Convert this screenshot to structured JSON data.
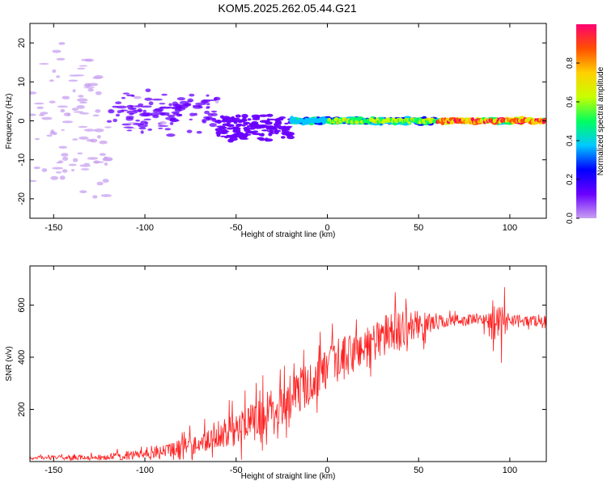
{
  "figure": {
    "title": "KOM5.2025.262.05.44.G21"
  },
  "chart_data": [
    {
      "type": "heatmap",
      "xlabel": "Height of straight line (km)",
      "ylabel": "Frequency (Hz)",
      "xlim": [
        -163,
        120
      ],
      "ylim": [
        -25,
        25
      ],
      "xticks": [
        -150,
        -100,
        -50,
        0,
        50,
        100
      ],
      "yticks": [
        -20,
        -10,
        0,
        10,
        20
      ],
      "colorbar": {
        "label": "Normalized spectral amplitude",
        "range": [
          0,
          1
        ],
        "ticks": [
          0.0,
          0.2,
          0.4,
          0.6,
          0.8
        ],
        "tick_labels": [
          "0.0",
          "0.2",
          "0.4",
          "0.6",
          "0.8"
        ],
        "colormap": [
          "#c8a0f0",
          "#6a00ff",
          "#0000ff",
          "#00c8ff",
          "#00ff60",
          "#c8ff00",
          "#ffd000",
          "#ff5000",
          "#ff0070"
        ]
      },
      "ridge": {
        "description_free_segments": [
          {
            "x0": -163,
            "x1": -120,
            "center_y": 0,
            "spread": 22,
            "amp": 0.05
          },
          {
            "x0": -120,
            "x1": -60,
            "center_y": 2,
            "spread": 6,
            "amp": 0.12
          },
          {
            "x0": -60,
            "x1": -20,
            "center_y": -2,
            "spread": 4,
            "amp": 0.15
          },
          {
            "x0": -20,
            "x1": 60,
            "center_y": 0,
            "spread": 1,
            "amp": 0.45
          },
          {
            "x0": 60,
            "x1": 120,
            "center_y": 0,
            "spread": 0.8,
            "amp": 0.85
          }
        ]
      }
    },
    {
      "type": "line",
      "xlabel": "Height of straight line (km)",
      "ylabel": "SNR (v/v)",
      "xlim": [
        -163,
        120
      ],
      "ylim": [
        0,
        750
      ],
      "xticks": [
        -150,
        -100,
        -50,
        0,
        50,
        100
      ],
      "yticks": [
        200,
        400,
        600
      ],
      "color": "#ff2020",
      "series": [
        {
          "name": "SNR",
          "x": [
            -163,
            -150,
            -140,
            -130,
            -120,
            -110,
            -100,
            -90,
            -80,
            -70,
            -60,
            -50,
            -40,
            -30,
            -20,
            -10,
            0,
            10,
            20,
            30,
            40,
            50,
            60,
            70,
            80,
            90,
            95,
            97,
            100,
            110,
            120
          ],
          "y": [
            15,
            15,
            15,
            16,
            18,
            22,
            30,
            40,
            55,
            70,
            95,
            125,
            160,
            200,
            250,
            300,
            350,
            400,
            440,
            480,
            510,
            525,
            535,
            540,
            545,
            540,
            520,
            540,
            545,
            540,
            540
          ]
        }
      ],
      "noise_scale": [
        {
          "x": -163,
          "amp": 8
        },
        {
          "x": -100,
          "amp": 25
        },
        {
          "x": -60,
          "amp": 70
        },
        {
          "x": -30,
          "amp": 120
        },
        {
          "x": 0,
          "amp": 120
        },
        {
          "x": 40,
          "amp": 110
        },
        {
          "x": 60,
          "amp": 40
        },
        {
          "x": 85,
          "amp": 30
        },
        {
          "x": 95,
          "amp": 120
        },
        {
          "x": 100,
          "amp": 30
        },
        {
          "x": 120,
          "amp": 30
        }
      ]
    }
  ]
}
